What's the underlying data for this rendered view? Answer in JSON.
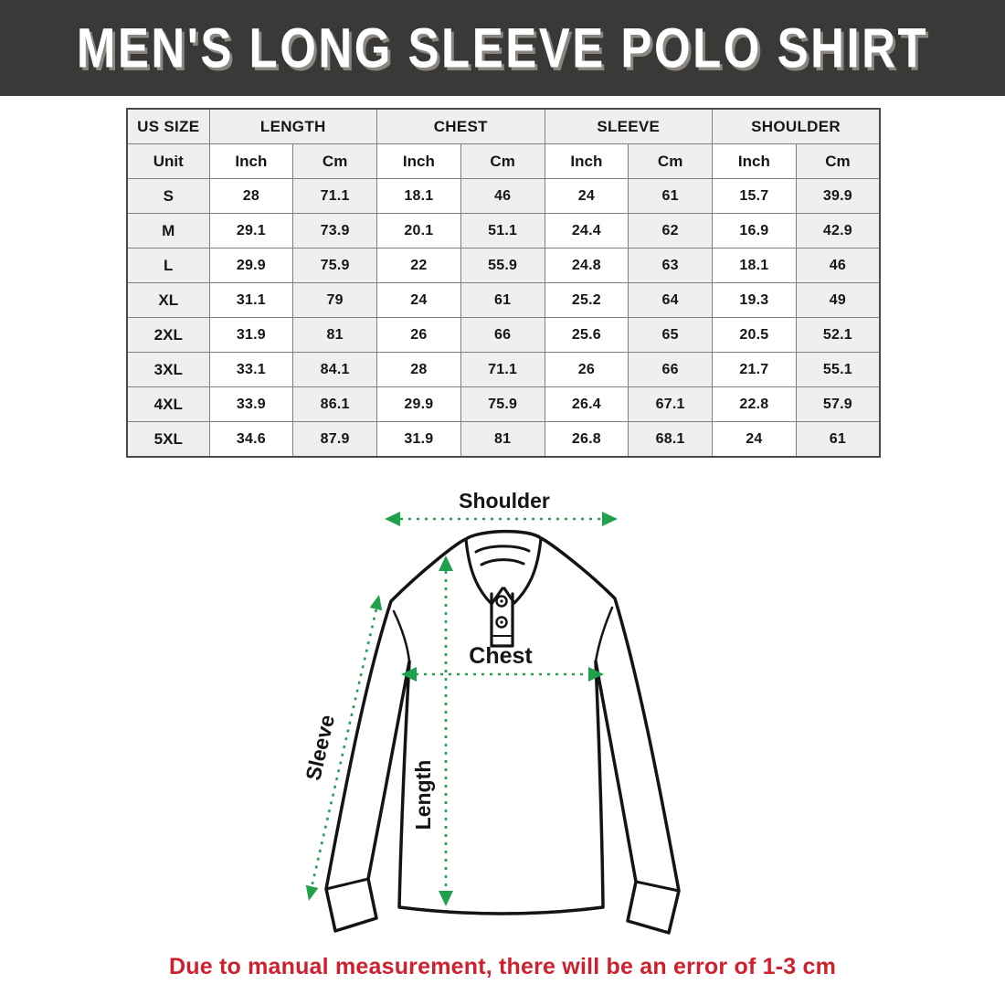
{
  "banner": {
    "title": "MEN'S LONG SLEEVE POLO SHIRT",
    "bg_color": "#3b3937",
    "text_color": "#ffffff"
  },
  "table": {
    "groups": [
      {
        "label": "US SIZE"
      },
      {
        "label": "LENGTH"
      },
      {
        "label": "CHEST"
      },
      {
        "label": "SLEEVE"
      },
      {
        "label": "SHOULDER"
      }
    ],
    "unit_row": [
      "Unit",
      "Inch",
      "Cm",
      "Inch",
      "Cm",
      "Inch",
      "Cm",
      "Inch",
      "Cm"
    ],
    "rows": [
      {
        "size": "S",
        "values": [
          "28",
          "71.1",
          "18.1",
          "46",
          "24",
          "61",
          "15.7",
          "39.9"
        ]
      },
      {
        "size": "M",
        "values": [
          "29.1",
          "73.9",
          "20.1",
          "51.1",
          "24.4",
          "62",
          "16.9",
          "42.9"
        ]
      },
      {
        "size": "L",
        "values": [
          "29.9",
          "75.9",
          "22",
          "55.9",
          "24.8",
          "63",
          "18.1",
          "46"
        ]
      },
      {
        "size": "XL",
        "values": [
          "31.1",
          "79",
          "24",
          "61",
          "25.2",
          "64",
          "19.3",
          "49"
        ]
      },
      {
        "size": "2XL",
        "values": [
          "31.9",
          "81",
          "26",
          "66",
          "25.6",
          "65",
          "20.5",
          "52.1"
        ]
      },
      {
        "size": "3XL",
        "values": [
          "33.1",
          "84.1",
          "28",
          "71.1",
          "26",
          "66",
          "21.7",
          "55.1"
        ]
      },
      {
        "size": "4XL",
        "values": [
          "33.9",
          "86.1",
          "29.9",
          "75.9",
          "26.4",
          "67.1",
          "22.8",
          "57.9"
        ]
      },
      {
        "size": "5XL",
        "values": [
          "34.6",
          "87.9",
          "31.9",
          "81",
          "26.8",
          "68.1",
          "24",
          "61"
        ]
      }
    ]
  },
  "diagram": {
    "labels": {
      "shoulder": "Shoulder",
      "chest": "Chest",
      "sleeve": "Sleeve",
      "length": "Length"
    },
    "arrow_color": "#1fa24b",
    "outline_color": "#141414"
  },
  "footer": {
    "note": "Due to manual measurement, there will be an error of 1-3 cm",
    "color": "#cf202e"
  }
}
